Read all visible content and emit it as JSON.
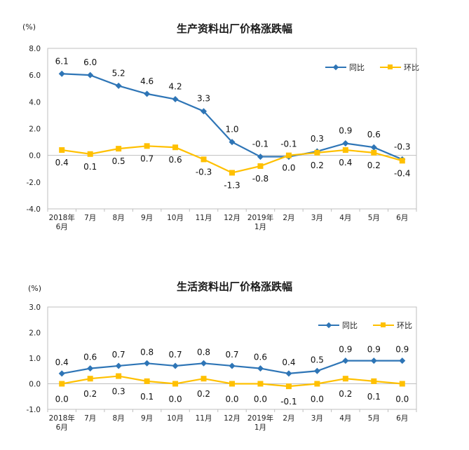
{
  "chart_data": [
    {
      "type": "line",
      "title": "生产资料出厂价格涨跌幅",
      "unit": "(%)",
      "categories": [
        [
          "2018年",
          "6月"
        ],
        [
          "7月"
        ],
        [
          "8月"
        ],
        [
          "9月"
        ],
        [
          "10月"
        ],
        [
          "11月"
        ],
        [
          "12月"
        ],
        [
          "2019年",
          "1月"
        ],
        [
          "2月"
        ],
        [
          "3月"
        ],
        [
          "4月"
        ],
        [
          "5月"
        ],
        [
          "6月"
        ]
      ],
      "ylim": [
        -4.0,
        8.0
      ],
      "yticks": [
        "8.0",
        "6.0",
        "4.0",
        "2.0",
        "0.0",
        "-2.0",
        "-4.0"
      ],
      "legend_position": "top-right",
      "series": [
        {
          "name": "同比",
          "color": "#2E75B6",
          "marker": "diamond",
          "values": [
            6.1,
            6.0,
            5.2,
            4.6,
            4.2,
            3.3,
            1.0,
            -0.1,
            -0.1,
            0.3,
            0.9,
            0.6,
            -0.3
          ],
          "labels": [
            "6.1",
            "6.0",
            "5.2",
            "4.6",
            "4.2",
            "3.3",
            "1.0",
            "-0.1",
            "-0.1",
            "0.3",
            "0.9",
            "0.6",
            "-0.3"
          ]
        },
        {
          "name": "环比",
          "color": "#FFC000",
          "marker": "square",
          "values": [
            0.4,
            0.1,
            0.5,
            0.7,
            0.6,
            -0.3,
            -1.3,
            -0.8,
            0.0,
            0.2,
            0.4,
            0.2,
            -0.4
          ],
          "labels": [
            "0.4",
            "0.1",
            "0.5",
            "0.7",
            "0.6",
            "-0.3",
            "-1.3",
            "-0.8",
            "0.0",
            "0.2",
            "0.4",
            "0.2",
            "-0.4"
          ]
        }
      ]
    },
    {
      "type": "line",
      "title": "生活资料出厂价格涨跌幅",
      "unit": "(%)",
      "categories": [
        [
          "2018年",
          "6月"
        ],
        [
          "7月"
        ],
        [
          "8月"
        ],
        [
          "9月"
        ],
        [
          "10月"
        ],
        [
          "11月"
        ],
        [
          "12月"
        ],
        [
          "2019年",
          "1月"
        ],
        [
          "2月"
        ],
        [
          "3月"
        ],
        [
          "4月"
        ],
        [
          "5月"
        ],
        [
          "6月"
        ]
      ],
      "ylim": [
        -1.0,
        3.0
      ],
      "yticks": [
        "3.0",
        "2.0",
        "1.0",
        "0.0",
        "-1.0"
      ],
      "legend_position": "top-right",
      "series": [
        {
          "name": "同比",
          "color": "#2E75B6",
          "marker": "diamond",
          "values": [
            0.4,
            0.6,
            0.7,
            0.8,
            0.7,
            0.8,
            0.7,
            0.6,
            0.4,
            0.5,
            0.9,
            0.9,
            0.9
          ],
          "labels": [
            "0.4",
            "0.6",
            "0.7",
            "0.8",
            "0.7",
            "0.8",
            "0.7",
            "0.6",
            "0.4",
            "0.5",
            "0.9",
            "0.9",
            "0.9"
          ]
        },
        {
          "name": "环比",
          "color": "#FFC000",
          "marker": "square",
          "values": [
            0.0,
            0.2,
            0.3,
            0.1,
            0.0,
            0.2,
            0.0,
            0.0,
            -0.1,
            0.0,
            0.2,
            0.1,
            0.0
          ],
          "labels": [
            "0.0",
            "0.2",
            "0.3",
            "0.1",
            "0.0",
            "0.2",
            "0.0",
            "0.0",
            "-0.1",
            "0.0",
            "0.2",
            "0.1",
            "0.0"
          ]
        }
      ]
    }
  ]
}
